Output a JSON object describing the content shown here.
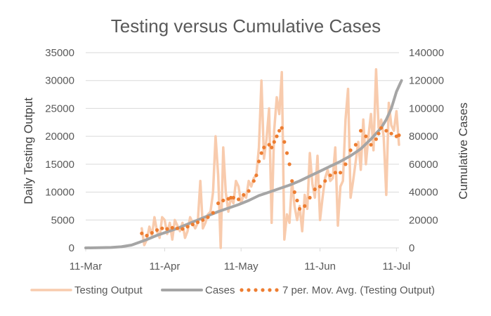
{
  "chart_data": {
    "type": "line",
    "title": "Testing versus Cumulative Cases",
    "ylabel_left": "Daily Testing Output",
    "ylabel_right": "Cumulative Cases",
    "ylim_left": [
      0,
      35000
    ],
    "ylim_right": [
      0,
      140000
    ],
    "yticks_left": [
      "0",
      "5000",
      "10000",
      "15000",
      "20000",
      "25000",
      "30000",
      "35000"
    ],
    "yticks_right": [
      "0",
      "20000",
      "40000",
      "60000",
      "80000",
      "100000",
      "120000",
      "140000"
    ],
    "xlim_days": [
      0,
      123
    ],
    "xticks": [
      {
        "label": "11-Mar",
        "day": 0
      },
      {
        "label": "11-Apr",
        "day": 31
      },
      {
        "label": "11-May",
        "day": 61
      },
      {
        "label": "11-Jun",
        "day": 92
      },
      {
        "label": "11-Jul",
        "day": 122
      }
    ],
    "grid": true,
    "legend_position": "bottom",
    "series": [
      {
        "name": "Testing Output",
        "axis": "left",
        "color": "#f8cbad",
        "style": "line",
        "points": [
          [
            22,
            3500
          ],
          [
            23,
            500
          ],
          [
            24,
            1500
          ],
          [
            25,
            3800
          ],
          [
            26,
            2200
          ],
          [
            27,
            5500
          ],
          [
            28,
            3000
          ],
          [
            29,
            1800
          ],
          [
            30,
            5500
          ],
          [
            31,
            5000
          ],
          [
            32,
            2500
          ],
          [
            33,
            4500
          ],
          [
            34,
            1500
          ],
          [
            35,
            5000
          ],
          [
            36,
            4000
          ],
          [
            37,
            3000
          ],
          [
            38,
            4500
          ],
          [
            39,
            1800
          ],
          [
            40,
            3000
          ],
          [
            41,
            5500
          ],
          [
            42,
            4500
          ],
          [
            43,
            3500
          ],
          [
            44,
            4500
          ],
          [
            45,
            12000
          ],
          [
            46,
            3500
          ],
          [
            47,
            4500
          ],
          [
            48,
            6000
          ],
          [
            49,
            6500
          ],
          [
            50,
            10000
          ],
          [
            51,
            20000
          ],
          [
            52,
            13000
          ],
          [
            53,
            0
          ],
          [
            54,
            18000
          ],
          [
            55,
            10000
          ],
          [
            56,
            6500
          ],
          [
            57,
            9000
          ],
          [
            58,
            8000
          ],
          [
            59,
            12000
          ],
          [
            60,
            11000
          ],
          [
            61,
            8000
          ],
          [
            62,
            9500
          ],
          [
            63,
            9000
          ],
          [
            64,
            12000
          ],
          [
            65,
            11000
          ],
          [
            66,
            12500
          ],
          [
            67,
            13000
          ],
          [
            68,
            18000
          ],
          [
            69,
            30000
          ],
          [
            70,
            16000
          ],
          [
            71,
            19500
          ],
          [
            72,
            25000
          ],
          [
            73,
            4500
          ],
          [
            74,
            21000
          ],
          [
            75,
            27000
          ],
          [
            76,
            24000
          ],
          [
            77,
            31500
          ],
          [
            78,
            1500
          ],
          [
            79,
            6000
          ],
          [
            80,
            4500
          ],
          [
            81,
            12000
          ],
          [
            82,
            7500
          ],
          [
            83,
            5000
          ],
          [
            84,
            7500
          ],
          [
            85,
            3000
          ],
          [
            86,
            9500
          ],
          [
            87,
            7000
          ],
          [
            88,
            17000
          ],
          [
            89,
            11500
          ],
          [
            90,
            9000
          ],
          [
            91,
            16500
          ],
          [
            92,
            5000
          ],
          [
            93,
            9000
          ],
          [
            94,
            12500
          ],
          [
            95,
            14000
          ],
          [
            96,
            12000
          ],
          [
            97,
            12500
          ],
          [
            98,
            18000
          ],
          [
            99,
            4000
          ],
          [
            100,
            11000
          ],
          [
            101,
            12000
          ],
          [
            102,
            23000
          ],
          [
            103,
            28500
          ],
          [
            104,
            9000
          ],
          [
            105,
            12000
          ],
          [
            106,
            15500
          ],
          [
            107,
            19000
          ],
          [
            108,
            14000
          ],
          [
            109,
            23000
          ],
          [
            110,
            15000
          ],
          [
            111,
            20000
          ],
          [
            112,
            24000
          ],
          [
            113,
            17500
          ],
          [
            114,
            32000
          ],
          [
            115,
            21500
          ],
          [
            116,
            23000
          ],
          [
            117,
            20000
          ],
          [
            118,
            9500
          ],
          [
            119,
            26000
          ],
          [
            120,
            22000
          ],
          [
            121,
            21000
          ],
          [
            122,
            24500
          ],
          [
            123,
            18500
          ]
        ]
      },
      {
        "name": "Cases",
        "axis": "right",
        "color": "#a5a5a5",
        "style": "line",
        "points": [
          [
            0,
            0
          ],
          [
            5,
            100
          ],
          [
            10,
            300
          ],
          [
            14,
            800
          ],
          [
            18,
            2000
          ],
          [
            21,
            4000
          ],
          [
            24,
            6000
          ],
          [
            28,
            9000
          ],
          [
            32,
            11500
          ],
          [
            36,
            14000
          ],
          [
            40,
            17000
          ],
          [
            44,
            20000
          ],
          [
            48,
            23000
          ],
          [
            52,
            26000
          ],
          [
            56,
            28500
          ],
          [
            60,
            31000
          ],
          [
            64,
            34000
          ],
          [
            68,
            37500
          ],
          [
            72,
            40000
          ],
          [
            76,
            42500
          ],
          [
            80,
            45000
          ],
          [
            84,
            48000
          ],
          [
            88,
            51500
          ],
          [
            92,
            55000
          ],
          [
            96,
            58500
          ],
          [
            100,
            62000
          ],
          [
            104,
            66000
          ],
          [
            108,
            71000
          ],
          [
            112,
            78000
          ],
          [
            116,
            86000
          ],
          [
            118,
            92000
          ],
          [
            120,
            100000
          ],
          [
            122,
            112000
          ],
          [
            124,
            120000
          ]
        ]
      },
      {
        "name": "7 per. Mov. Avg. (Testing Output)",
        "axis": "left",
        "color": "#ed7d31",
        "style": "dotted",
        "points": [
          [
            22,
            2600
          ],
          [
            24,
            2200
          ],
          [
            26,
            2700
          ],
          [
            28,
            3200
          ],
          [
            30,
            3500
          ],
          [
            32,
            3400
          ],
          [
            34,
            3600
          ],
          [
            36,
            3500
          ],
          [
            38,
            3400
          ],
          [
            40,
            3800
          ],
          [
            42,
            4200
          ],
          [
            44,
            4600
          ],
          [
            46,
            5000
          ],
          [
            48,
            5500
          ],
          [
            50,
            6300
          ],
          [
            52,
            8000
          ],
          [
            54,
            8500
          ],
          [
            56,
            8800
          ],
          [
            57,
            9000
          ],
          [
            58,
            9000
          ],
          [
            60,
            8700
          ],
          [
            62,
            9500
          ],
          [
            64,
            10200
          ],
          [
            66,
            12000
          ],
          [
            67,
            13000
          ],
          [
            68,
            15500
          ],
          [
            69,
            17000
          ],
          [
            70,
            18000
          ],
          [
            72,
            18500
          ],
          [
            73,
            18000
          ],
          [
            74,
            19000
          ],
          [
            75,
            20000
          ],
          [
            76,
            21000
          ],
          [
            77,
            21500
          ],
          [
            78,
            19000
          ],
          [
            79,
            17000
          ],
          [
            80,
            15000
          ],
          [
            81,
            12000
          ],
          [
            82,
            10000
          ],
          [
            83,
            8500
          ],
          [
            84,
            7000
          ],
          [
            86,
            7500
          ],
          [
            88,
            9000
          ],
          [
            90,
            10500
          ],
          [
            92,
            11000
          ],
          [
            94,
            12000
          ],
          [
            96,
            13000
          ],
          [
            98,
            13500
          ],
          [
            100,
            13500
          ],
          [
            102,
            15000
          ],
          [
            104,
            17500
          ],
          [
            106,
            18500
          ],
          [
            108,
            21000
          ],
          [
            110,
            20000
          ],
          [
            112,
            18500
          ],
          [
            114,
            19500
          ],
          [
            115,
            20500
          ],
          [
            116,
            21500
          ],
          [
            118,
            21000
          ],
          [
            120,
            20500
          ],
          [
            122,
            20000
          ],
          [
            123,
            20200
          ]
        ]
      }
    ]
  }
}
